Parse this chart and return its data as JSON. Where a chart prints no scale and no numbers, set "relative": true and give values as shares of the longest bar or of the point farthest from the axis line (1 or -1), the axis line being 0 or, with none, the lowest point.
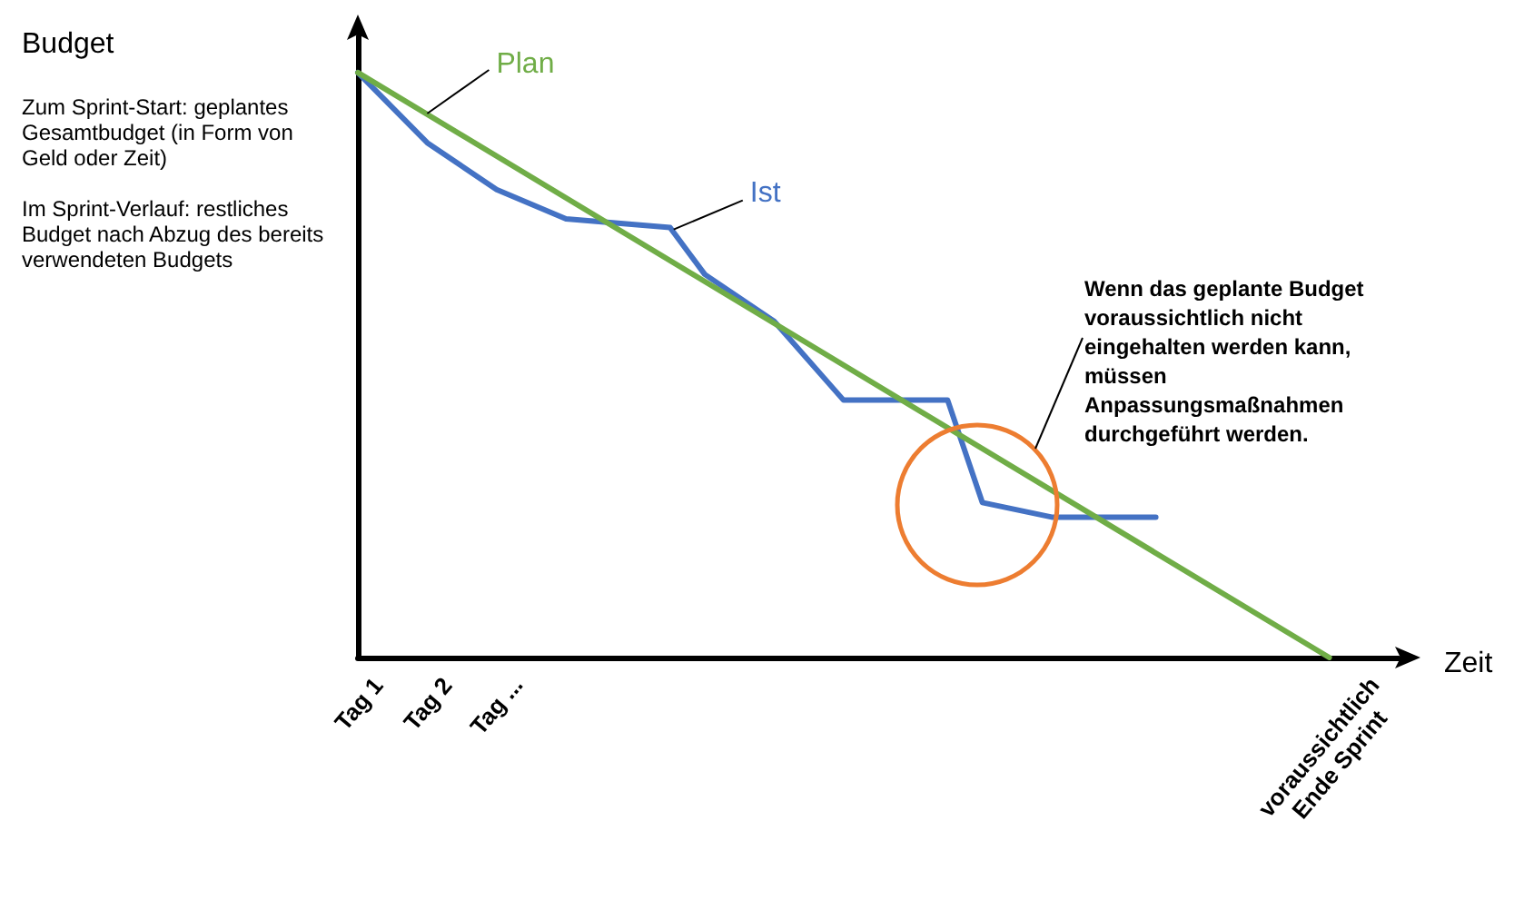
{
  "chart_data": {
    "type": "line",
    "relative": true,
    "xlabel": "Zeit",
    "categories": [
      "Tag 1",
      null,
      "Tag 2",
      null,
      "Tag ...",
      null,
      null,
      null,
      null,
      null,
      null,
      null,
      null,
      null,
      null,
      null,
      null,
      null,
      null,
      null,
      null,
      null,
      null,
      null,
      null,
      null,
      null,
      null,
      "voraussichtlich\nEnde Sprint",
      null,
      null
    ],
    "series": [
      {
        "name": "Plan",
        "color": "#70ad47",
        "values": [
          1,
          null,
          null,
          null,
          null,
          null,
          null,
          null,
          null,
          null,
          null,
          null,
          null,
          null,
          null,
          null,
          null,
          null,
          null,
          null,
          null,
          null,
          null,
          null,
          null,
          null,
          null,
          null,
          0,
          null,
          null
        ]
      },
      {
        "name": "Ist",
        "color": "#4472c4",
        "values": [
          1,
          null,
          0.88,
          null,
          0.8,
          null,
          0.75,
          null,
          null,
          0.735,
          0.655,
          null,
          0.575,
          null,
          0.44,
          null,
          null,
          0.44,
          0.265,
          null,
          0.24,
          null,
          null,
          0.24,
          null,
          null,
          null,
          null,
          null,
          null,
          null
        ]
      }
    ],
    "annotations": [
      "Budget",
      "Zum Sprint-Start: geplantes Gesamtbudget (in Form von Geld oder Zeit)",
      "Im Sprint-Verlauf: restliches Budget nach Abzug des bereits verwendeten Budgets",
      "Wenn das geplante Budget voraussichtlich nicht eingehalten werden kann, müssen Anpassungsmaßnahmen durchgeführt werden."
    ],
    "grid": false,
    "legend": false,
    "marker": "none",
    "line_style": "solid",
    "tick_labels": "x"
  }
}
